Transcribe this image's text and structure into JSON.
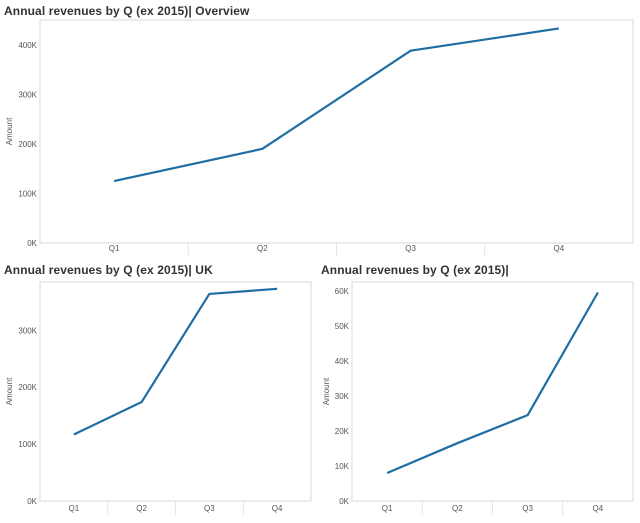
{
  "charts": [
    {
      "title": "Annual revenues by Q (ex 2015)| Overview"
    },
    {
      "title": "Annual revenues by Q (ex 2015)| UK"
    },
    {
      "title": "Annual revenues by Q (ex 2015)|"
    }
  ],
  "colors": {
    "line": "#1f6ea3",
    "grid": "#e6e6e6",
    "frame": "#d9d9d9"
  },
  "chart_data": [
    {
      "type": "line",
      "title": "Annual revenues by Q (ex 2015)| Overview",
      "categories": [
        "Q1",
        "Q2",
        "Q3",
        "Q4"
      ],
      "values": [
        125000,
        190000,
        388000,
        433000
      ],
      "ylabel": "Amount",
      "ylim": [
        0,
        450000
      ],
      "yticks": [
        0,
        100000,
        200000,
        300000,
        400000
      ],
      "yticklabels": [
        "0K",
        "100K",
        "200K",
        "300K",
        "400K"
      ],
      "grid": false
    },
    {
      "type": "line",
      "title": "Annual revenues by Q (ex 2015)| UK",
      "categories": [
        "Q1",
        "Q2",
        "Q3",
        "Q4"
      ],
      "values": [
        117000,
        174000,
        364000,
        373000
      ],
      "ylabel": "Amount",
      "ylim": [
        0,
        385000
      ],
      "yticks": [
        0,
        100000,
        200000,
        300000
      ],
      "yticklabels": [
        "0K",
        "100K",
        "200K",
        "300K"
      ],
      "grid": false
    },
    {
      "type": "line",
      "title": "Annual revenues by Q (ex 2015)|",
      "categories": [
        "Q1",
        "Q2",
        "Q3",
        "Q4"
      ],
      "values": [
        8000,
        16500,
        24500,
        59500
      ],
      "ylabel": "Amount",
      "ylim": [
        0,
        62500
      ],
      "yticks": [
        0,
        10000,
        20000,
        30000,
        40000,
        50000,
        60000
      ],
      "yticklabels": [
        "0K",
        "10K",
        "20K",
        "30K",
        "40K",
        "50K",
        "60K"
      ],
      "grid": false
    }
  ]
}
